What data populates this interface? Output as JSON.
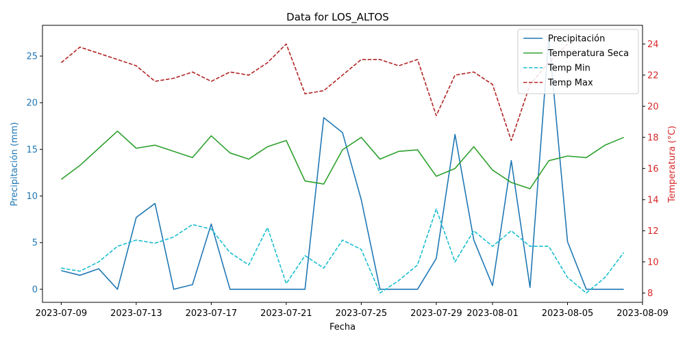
{
  "chart_data": {
    "type": "line",
    "title": "Data for LOS_ALTOS",
    "xlabel": "Fecha",
    "ylabel_left": "Precipitación (mm)",
    "ylabel_right": "Temperatura (°C)",
    "x": [
      "2023-07-09",
      "2023-07-10",
      "2023-07-11",
      "2023-07-12",
      "2023-07-13",
      "2023-07-14",
      "2023-07-15",
      "2023-07-16",
      "2023-07-17",
      "2023-07-18",
      "2023-07-19",
      "2023-07-20",
      "2023-07-21",
      "2023-07-22",
      "2023-07-23",
      "2023-07-24",
      "2023-07-25",
      "2023-07-26",
      "2023-07-27",
      "2023-07-28",
      "2023-07-29",
      "2023-07-30",
      "2023-07-31",
      "2023-08-01",
      "2023-08-02",
      "2023-08-03",
      "2023-08-04",
      "2023-08-05",
      "2023-08-06",
      "2023-08-07",
      "2023-08-08"
    ],
    "xlim": [
      "2023-07-08",
      "2023-08-09"
    ],
    "xticks": [
      "2023-07-09",
      "2023-07-13",
      "2023-07-17",
      "2023-07-21",
      "2023-07-25",
      "2023-07-29",
      "2023-08-01",
      "2023-08-05",
      "2023-08-09"
    ],
    "ylim_left": [
      -1.4,
      28.3
    ],
    "yticks_left": [
      0,
      5,
      10,
      15,
      20,
      25
    ],
    "ylim_right": [
      7.4,
      25.2
    ],
    "yticks_right": [
      8,
      10,
      12,
      14,
      16,
      18,
      20,
      22,
      24
    ],
    "legend_position": "top-right",
    "series": [
      {
        "name": "Precipitación",
        "axis": "left",
        "color": "#1f77b4",
        "style": "solid",
        "values": [
          2.0,
          1.5,
          2.2,
          0.0,
          7.7,
          9.2,
          0.0,
          0.5,
          7.0,
          0.0,
          0.0,
          0.0,
          0.0,
          0.0,
          18.4,
          16.8,
          9.6,
          0.0,
          0.0,
          0.0,
          3.3,
          16.6,
          5.3,
          0.4,
          13.8,
          0.2,
          27.0,
          5.1,
          0.0,
          0.0,
          0.0
        ]
      },
      {
        "name": "Temperatura Seca",
        "axis": "right",
        "color": "#2ca02c",
        "style": "solid",
        "values": [
          15.3,
          16.2,
          17.3,
          18.4,
          17.3,
          17.5,
          17.1,
          16.7,
          18.1,
          17.0,
          16.6,
          17.4,
          17.8,
          15.2,
          15.0,
          17.2,
          18.0,
          16.6,
          17.1,
          17.2,
          15.5,
          16.0,
          17.4,
          15.9,
          15.1,
          14.7,
          16.5,
          16.8,
          16.7,
          17.5,
          18.0
        ]
      },
      {
        "name": "Temp Min",
        "axis": "right",
        "color": "#17becf",
        "style": "dashed",
        "values": [
          9.6,
          9.4,
          10.0,
          11.0,
          11.4,
          11.2,
          11.6,
          12.4,
          12.1,
          10.6,
          9.8,
          12.2,
          8.6,
          10.4,
          9.6,
          11.4,
          10.8,
          8.0,
          8.8,
          9.8,
          13.4,
          10.0,
          12.0,
          11.0,
          12.0,
          11.0,
          11.0,
          9.0,
          8.0,
          9.0,
          10.6
        ]
      },
      {
        "name": "Temp Max",
        "axis": "right",
        "color": "#b22222",
        "style": "dashed",
        "values": [
          22.8,
          23.8,
          23.4,
          23.0,
          22.6,
          21.6,
          21.8,
          22.2,
          21.6,
          22.2,
          22.0,
          22.8,
          24.0,
          20.8,
          21.0,
          22.0,
          23.0,
          23.0,
          22.6,
          23.0,
          19.4,
          22.0,
          22.2,
          21.4,
          17.8,
          21.4,
          22.8,
          24.0,
          null,
          null,
          null
        ]
      }
    ]
  }
}
